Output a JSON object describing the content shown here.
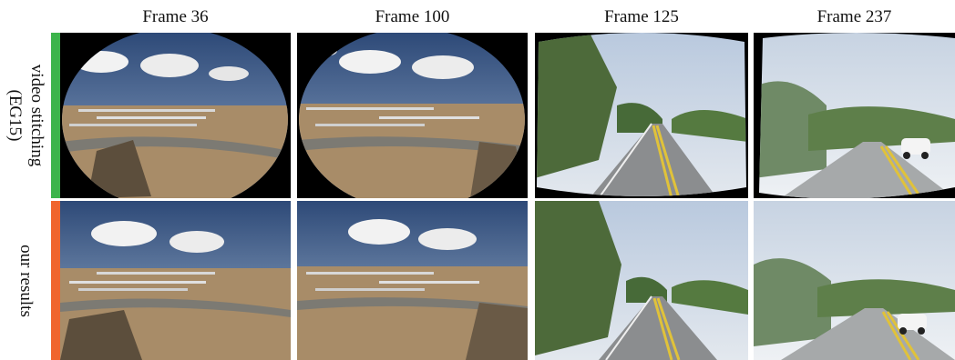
{
  "columns": [
    {
      "label": "Frame 36"
    },
    {
      "label": "Frame 100"
    },
    {
      "label": "Frame 125"
    },
    {
      "label": "Frame 237"
    }
  ],
  "rows": [
    {
      "label": "video stitching\n(EG15)",
      "bar_color": "#3cb44b"
    },
    {
      "label": "our results",
      "bar_color": "#f0652d"
    }
  ],
  "colors": {
    "sky_blue": "#3f5d8c",
    "desert": "#a78a66",
    "foliage": "#4a6a3a",
    "road": "#8a8d8f",
    "lane_yellow": "#e0c23a"
  },
  "image_subjects": [
    "airfield-scene",
    "airfield-scene",
    "road-scene",
    "road-scene"
  ]
}
